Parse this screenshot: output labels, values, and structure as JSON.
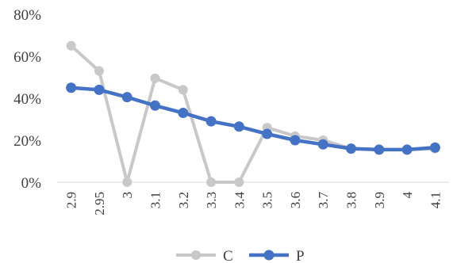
{
  "chart_data": {
    "type": "line",
    "title": "",
    "xlabel": "",
    "ylabel": "",
    "categories": [
      "2.9",
      "2.95",
      "3",
      "3.1",
      "3.2",
      "3.3",
      "3.4",
      "3.5",
      "3.6",
      "3.7",
      "3.8",
      "3.9",
      "4",
      "4.1"
    ],
    "y_ticks": [
      "0%",
      "20%",
      "40%",
      "60%",
      "80%"
    ],
    "ylim": [
      0,
      80
    ],
    "grid": false,
    "legend_position": "bottom",
    "series": [
      {
        "name": "C",
        "color": "#c8c8c8",
        "values": [
          65,
          53,
          0,
          49.5,
          44,
          0,
          0,
          26,
          22,
          20,
          16,
          15.5,
          15.5,
          16
        ]
      },
      {
        "name": "P",
        "color": "#4472c4",
        "values": [
          45,
          44,
          40.5,
          36.5,
          33,
          29,
          26.5,
          23,
          20,
          18,
          16,
          15.5,
          15.5,
          16.5
        ]
      }
    ]
  }
}
